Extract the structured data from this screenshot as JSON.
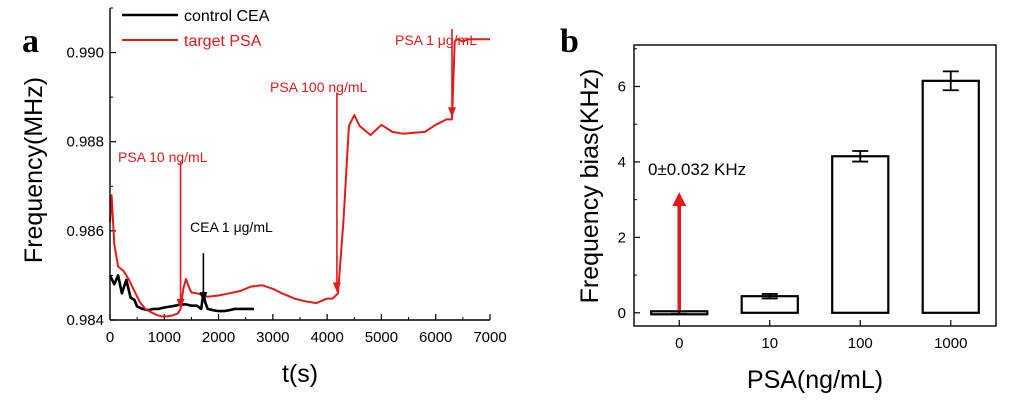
{
  "chart_data": [
    {
      "type": "line",
      "panel_label": "a",
      "xlabel": "t(s)",
      "ylabel": "Frequency(MHz)",
      "xlim": [
        0,
        7000
      ],
      "ylim": [
        0.984,
        0.991
      ],
      "x_ticks": [
        "0",
        "1000",
        "2000",
        "3000",
        "4000",
        "5000",
        "6000",
        "7000"
      ],
      "y_ticks": [
        "0.984",
        "0.986",
        "0.988",
        "0.990"
      ],
      "series": [
        {
          "name": "control CEA",
          "color": "#000000",
          "x": [
            0,
            80,
            150,
            220,
            300,
            380,
            450,
            500,
            600,
            700,
            800,
            900,
            1000,
            1100,
            1200,
            1300,
            1400,
            1500,
            1600,
            1680,
            1720,
            1760,
            1800,
            1900,
            2000,
            2100,
            2200,
            2300,
            2400,
            2500,
            2650
          ],
          "y": [
            0.985,
            0.9848,
            0.985,
            0.9846,
            0.9849,
            0.9845,
            0.98445,
            0.9843,
            0.98425,
            0.98422,
            0.98425,
            0.98425,
            0.98428,
            0.9843,
            0.98432,
            0.98435,
            0.98435,
            0.98432,
            0.98432,
            0.98425,
            0.9846,
            0.98438,
            0.98425,
            0.98422,
            0.9842,
            0.9842,
            0.98422,
            0.98425,
            0.98425,
            0.98425,
            0.98425
          ]
        },
        {
          "name": "target PSA",
          "color": "#e31a1c",
          "x": [
            0,
            30,
            80,
            150,
            250,
            350,
            450,
            550,
            650,
            750,
            850,
            950,
            1050,
            1150,
            1250,
            1300,
            1350,
            1400,
            1450,
            1500,
            1600,
            1800,
            2000,
            2200,
            2400,
            2600,
            2800,
            3000,
            3200,
            3400,
            3600,
            3800,
            4000,
            4100,
            4200,
            4300,
            4400,
            4500,
            4600,
            4800,
            5000,
            5200,
            5400,
            5600,
            5800,
            6000,
            6200,
            6280,
            6300,
            6350,
            6400,
            6500,
            6600,
            6800,
            7000
          ],
          "y": [
            0.9862,
            0.9868,
            0.9857,
            0.9852,
            0.9851,
            0.9849,
            0.98465,
            0.9844,
            0.98425,
            0.98418,
            0.98412,
            0.98408,
            0.98408,
            0.9841,
            0.98415,
            0.98425,
            0.9847,
            0.98492,
            0.98475,
            0.98462,
            0.9846,
            0.98452,
            0.98455,
            0.9846,
            0.98465,
            0.98475,
            0.98478,
            0.9847,
            0.98458,
            0.98448,
            0.98442,
            0.98438,
            0.98448,
            0.98448,
            0.9846,
            0.9862,
            0.98835,
            0.9886,
            0.98835,
            0.98815,
            0.98838,
            0.98822,
            0.98818,
            0.9882,
            0.98822,
            0.98838,
            0.9885,
            0.9885,
            0.9885,
            0.99025,
            0.9903,
            0.99025,
            0.9903,
            0.9903,
            0.9903
          ]
        }
      ],
      "legend": {
        "position": "top-left",
        "entries": [
          "control CEA",
          "target PSA"
        ]
      },
      "annotations": [
        {
          "text": "PSA 10 ng/mL",
          "color": "#e31a1c",
          "arrow_x": 1300,
          "arrow_tip_y": 0.98425,
          "arrow_tail_y": 0.98755
        },
        {
          "text": "CEA 1 μg/mL",
          "color": "#000000",
          "arrow_x": 1720,
          "arrow_tip_y": 0.9844,
          "arrow_tail_y": 0.9855
        },
        {
          "text": "PSA 100 ng/mL",
          "color": "#e31a1c",
          "arrow_x": 4180,
          "arrow_tip_y": 0.98462,
          "arrow_tail_y": 0.9891
        },
        {
          "text": "PSA 1 μg/mL",
          "color": "#e31a1c",
          "arrow_x": 6300,
          "arrow_tip_y": 0.98855,
          "arrow_tail_y": 0.99053
        }
      ]
    },
    {
      "type": "bar",
      "panel_label": "b",
      "xlabel": "PSA(ng/mL)",
      "ylabel": "Frequency bias(KHz)",
      "categories": [
        "0",
        "10",
        "100",
        "1000"
      ],
      "values": [
        0,
        0.44,
        4.15,
        6.15
      ],
      "errors": [
        0.032,
        0.06,
        0.14,
        0.25
      ],
      "ylim": [
        -0.35,
        7.1
      ],
      "y_ticks": [
        "0",
        "2",
        "4",
        "6"
      ],
      "annotation": {
        "text": "0±0.032 KHz",
        "color": "#e31a1c",
        "arrow_category": "0",
        "arrow_tip_y": 3.2,
        "arrow_tail_y": 0.06
      }
    }
  ]
}
